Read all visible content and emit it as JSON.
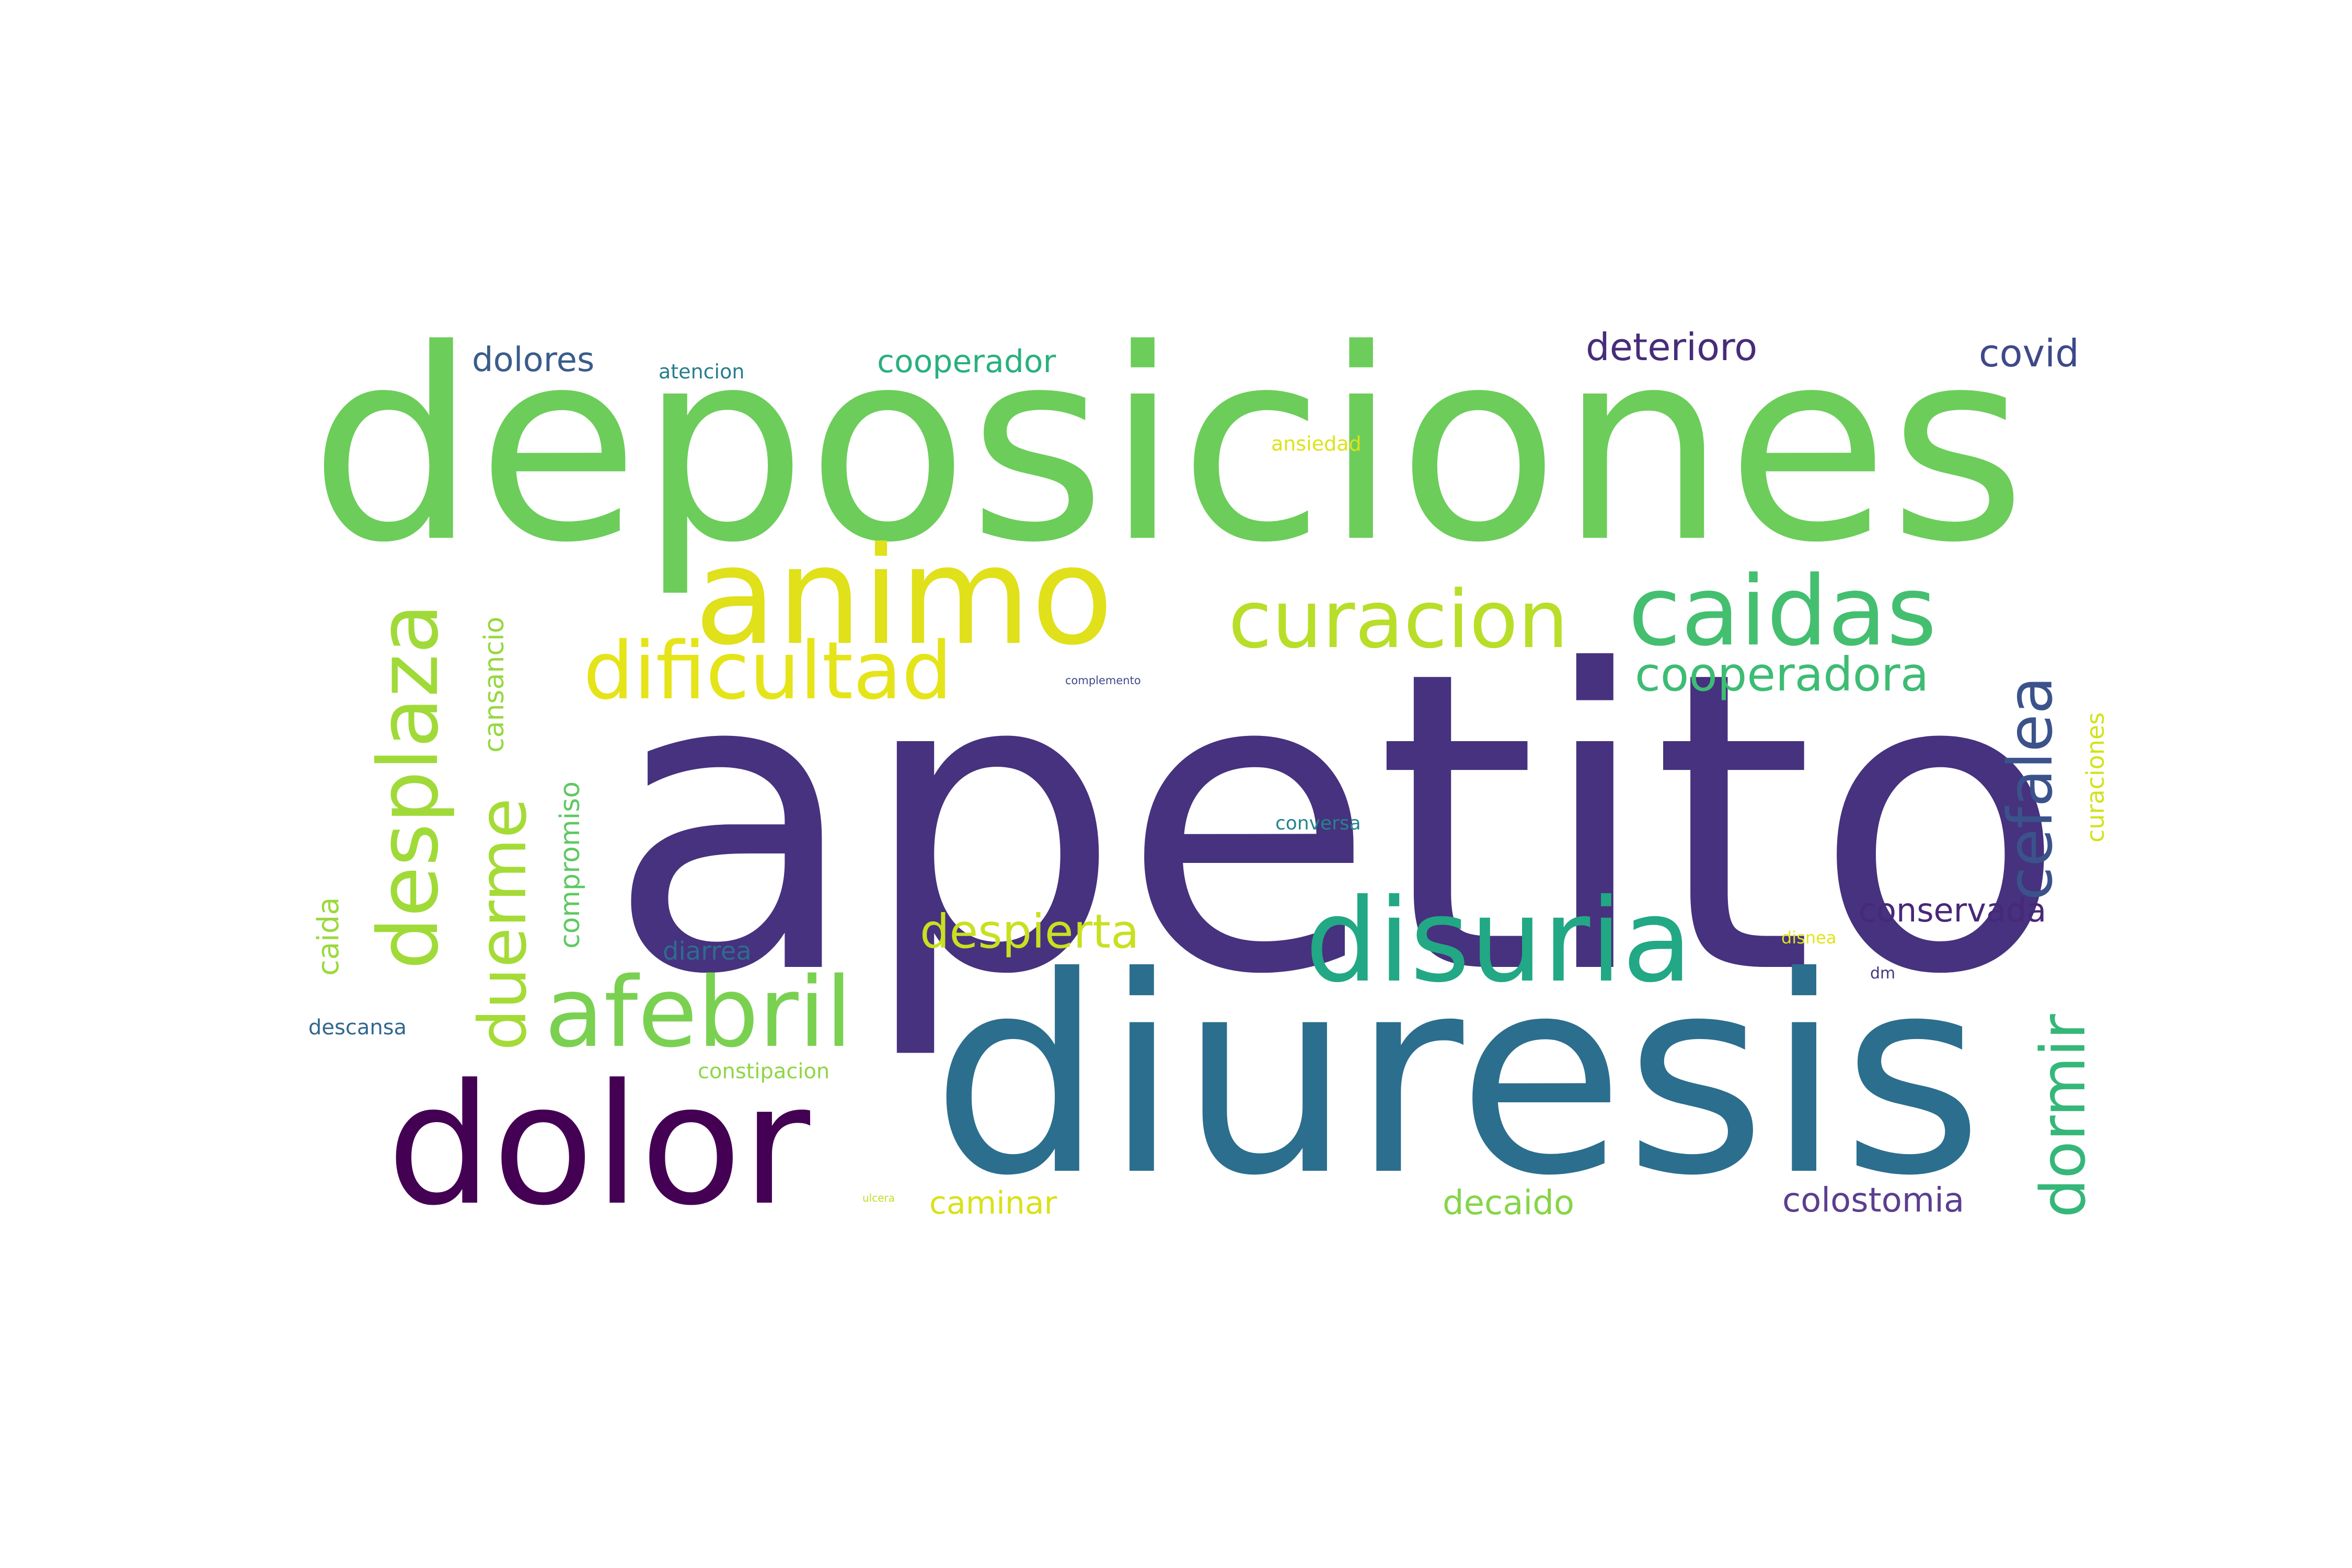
{
  "words": [
    {
      "text": "apetito",
      "color": "#46327e",
      "orientation": "horizontal"
    },
    {
      "text": "deposiciones",
      "color": "#6ccd5a",
      "orientation": "horizontal"
    },
    {
      "text": "diuresis",
      "color": "#2c6e8e",
      "orientation": "horizontal"
    },
    {
      "text": "dolor",
      "color": "#440154",
      "orientation": "horizontal"
    },
    {
      "text": "animo",
      "color": "#e0e01b",
      "orientation": "horizontal"
    },
    {
      "text": "disuria",
      "color": "#22a884",
      "orientation": "horizontal"
    },
    {
      "text": "caidas",
      "color": "#44bf70",
      "orientation": "horizontal"
    },
    {
      "text": "curacion",
      "color": "#b8de29",
      "orientation": "horizontal"
    },
    {
      "text": "dificultad",
      "color": "#e5e419",
      "orientation": "horizontal"
    },
    {
      "text": "afebril",
      "color": "#7ad151",
      "orientation": "horizontal"
    },
    {
      "text": "desplaza",
      "color": "#a0da39",
      "orientation": "vertical"
    },
    {
      "text": "cefalea",
      "color": "#3b528b",
      "orientation": "vertical"
    },
    {
      "text": "duerme",
      "color": "#a5db36",
      "orientation": "vertical"
    },
    {
      "text": "dormir",
      "color": "#35b779",
      "orientation": "vertical"
    },
    {
      "text": "cooperadora",
      "color": "#3dbc74",
      "orientation": "horizontal"
    },
    {
      "text": "despierta",
      "color": "#c8e020",
      "orientation": "horizontal"
    },
    {
      "text": "conservada",
      "color": "#482878",
      "orientation": "horizontal"
    },
    {
      "text": "colostomia",
      "color": "#5c3e8f",
      "orientation": "horizontal"
    },
    {
      "text": "deterioro",
      "color": "#472c7a",
      "orientation": "horizontal"
    },
    {
      "text": "covid",
      "color": "#3e4989",
      "orientation": "horizontal"
    },
    {
      "text": "dolores",
      "color": "#3b5c8b",
      "orientation": "horizontal"
    },
    {
      "text": "cooperador",
      "color": "#2ab07f",
      "orientation": "horizontal"
    },
    {
      "text": "decaido",
      "color": "#86d549",
      "orientation": "horizontal"
    },
    {
      "text": "caminar",
      "color": "#d8e219",
      "orientation": "horizontal"
    },
    {
      "text": "cansancio",
      "color": "#95d840",
      "orientation": "vertical"
    },
    {
      "text": "compromiso",
      "color": "#5ec962",
      "orientation": "vertical"
    },
    {
      "text": "caida",
      "color": "#9bd93c",
      "orientation": "vertical"
    },
    {
      "text": "curaciones",
      "color": "#d2e21b",
      "orientation": "vertical"
    },
    {
      "text": "diarrea",
      "color": "#2f6b8e",
      "orientation": "horizontal"
    },
    {
      "text": "descansa",
      "color": "#31688e",
      "orientation": "horizontal"
    },
    {
      "text": "constipacion",
      "color": "#8ed645",
      "orientation": "horizontal"
    },
    {
      "text": "atencion",
      "color": "#287d8e",
      "orientation": "horizontal"
    },
    {
      "text": "ansiedad",
      "color": "#dde318",
      "orientation": "horizontal"
    },
    {
      "text": "conversa",
      "color": "#26828e",
      "orientation": "horizontal"
    },
    {
      "text": "disnea",
      "color": "#e2e418",
      "orientation": "horizontal"
    },
    {
      "text": "dm",
      "color": "#453781",
      "orientation": "horizontal"
    },
    {
      "text": "complemento",
      "color": "#3e4a89",
      "orientation": "horizontal"
    },
    {
      "text": "ulcera",
      "color": "#bddf26",
      "orientation": "horizontal"
    }
  ]
}
